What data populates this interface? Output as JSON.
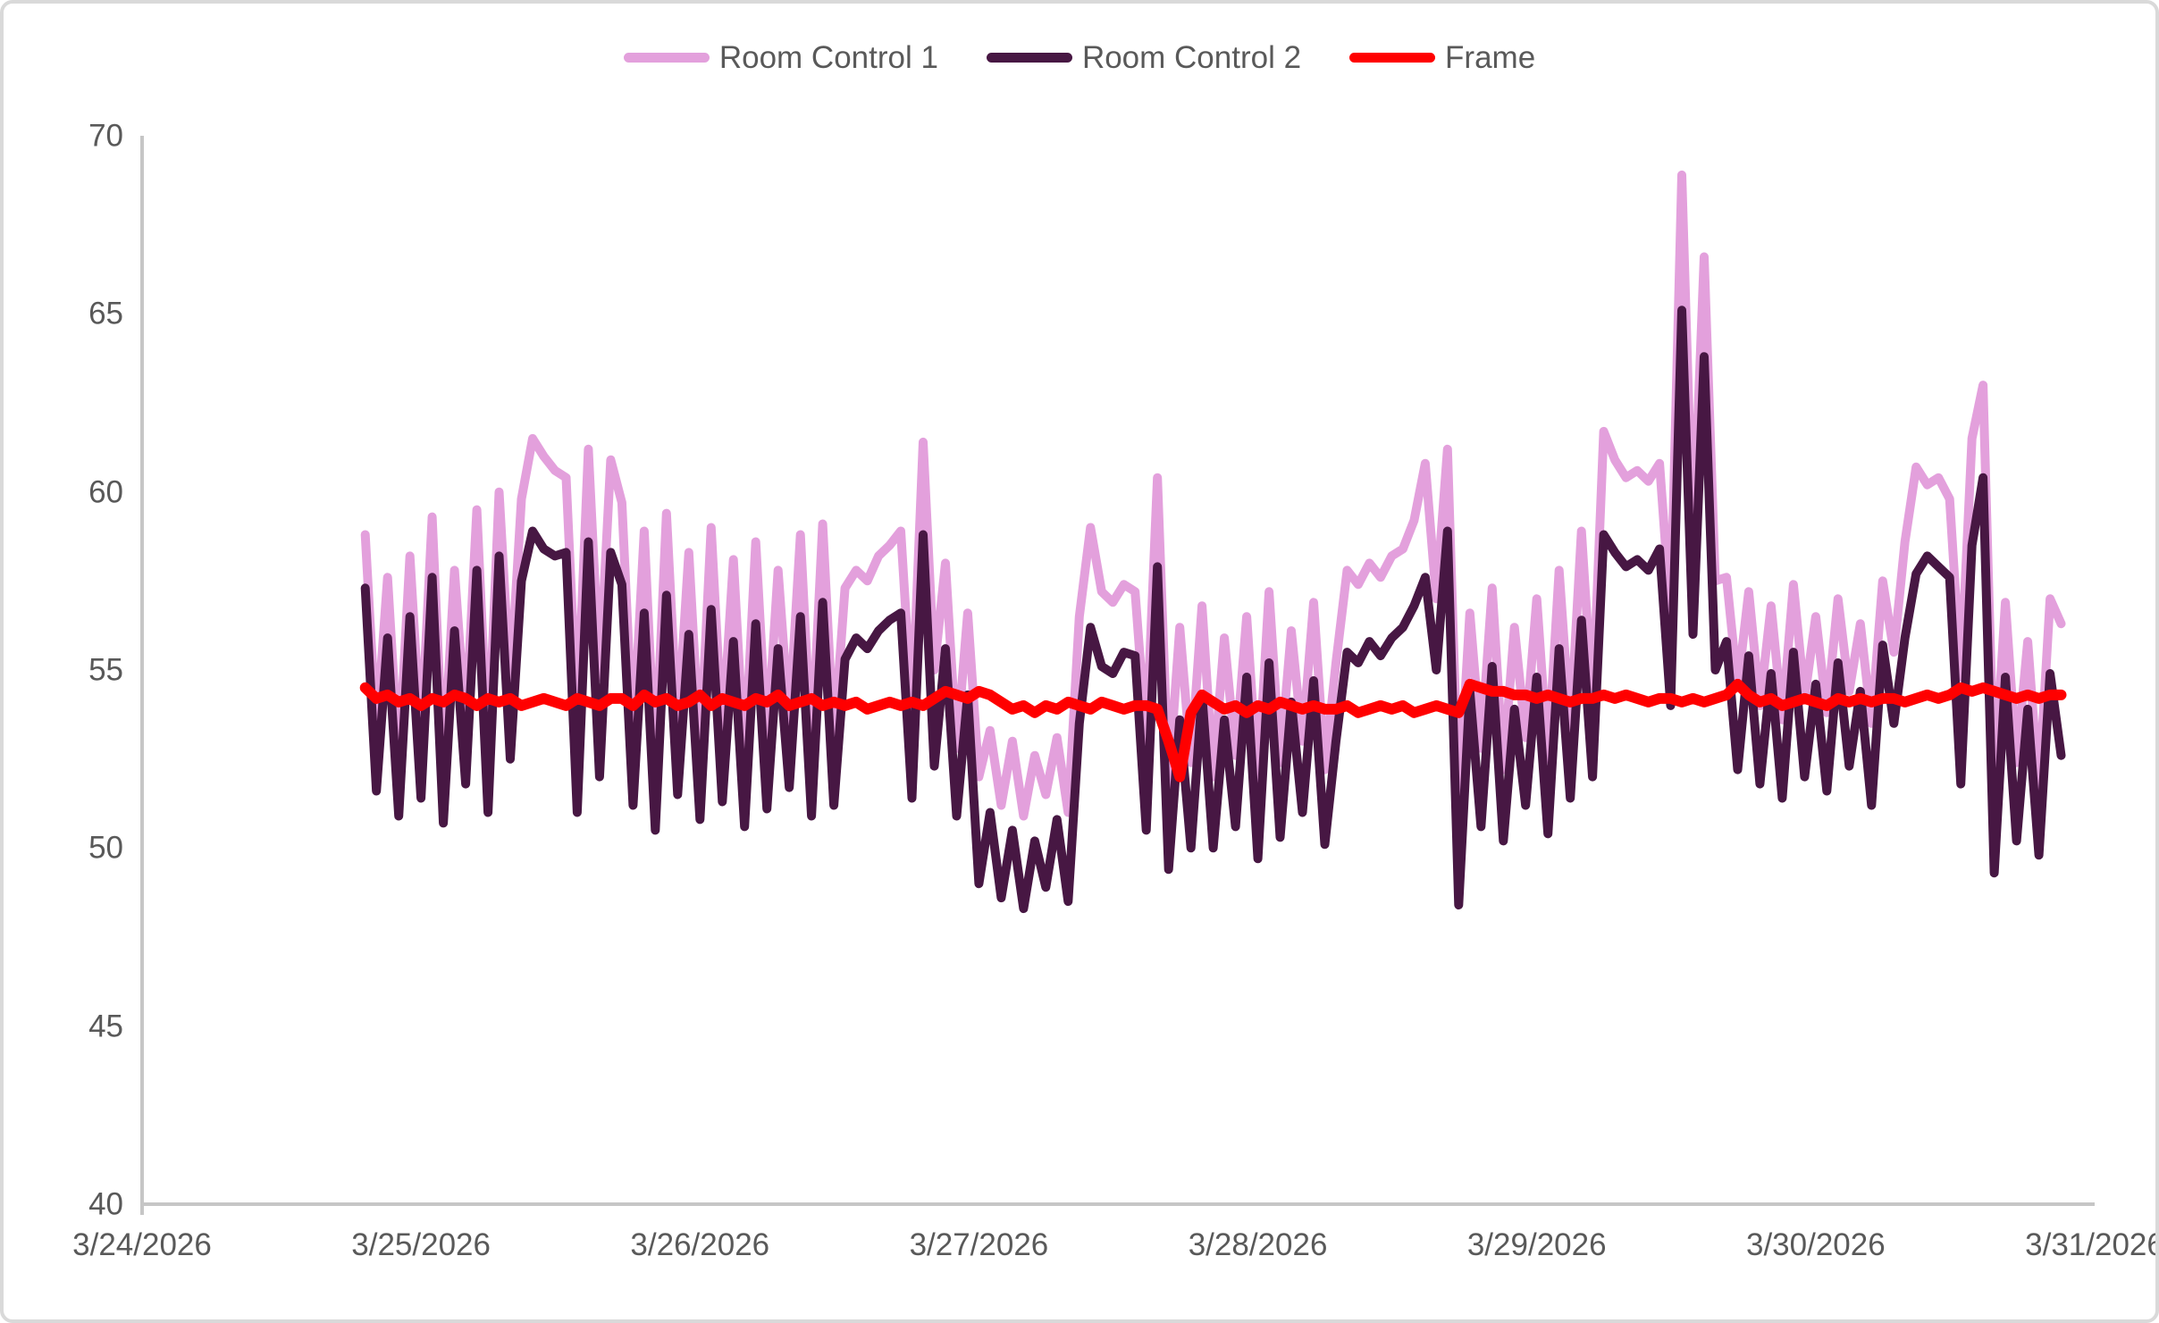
{
  "chart": {
    "background_color": "#FFFFFF",
    "frame_border_color": "#D9D9D9",
    "axis_line_color": "#C6C6C6",
    "label_color": "#595959"
  },
  "chart_data": {
    "type": "line",
    "title": "",
    "grid": "off",
    "legend_position": "top-center",
    "x_axis": {
      "label": "",
      "tick_labels": [
        "3/24/2026",
        "3/25/2026",
        "3/26/2026",
        "3/27/2026",
        "3/28/2026",
        "3/29/2026",
        "3/30/2026",
        "3/31/2026"
      ],
      "domain_days": [
        0,
        7
      ]
    },
    "y_axis": {
      "label": "",
      "min": 40,
      "max": 70,
      "ticks": [
        40,
        45,
        50,
        55,
        60,
        65,
        70
      ]
    },
    "sampling": {
      "t0_days_after_3_24": 0.8,
      "dt_days": 0.04,
      "note": "values sampled on uniform time grid; t(i) = t0 + i*dt days after 3/24/2026 00:00"
    },
    "series": [
      {
        "name": "Room Control 1",
        "color": "#E3A0DC",
        "stroke_width": 10,
        "values": [
          58.8,
          53.2,
          57.6,
          52.4,
          58.2,
          53.0,
          59.3,
          52.2,
          57.8,
          53.4,
          59.5,
          52.6,
          60.0,
          54.5,
          59.8,
          61.5,
          61.0,
          60.6,
          60.4,
          53.6,
          61.2,
          54.8,
          60.9,
          59.7,
          53.0,
          58.9,
          52.3,
          59.4,
          53.3,
          58.3,
          52.6,
          59.0,
          53.1,
          58.1,
          52.4,
          58.6,
          52.9,
          57.8,
          53.5,
          58.8,
          52.7,
          59.1,
          53.0,
          57.3,
          57.8,
          57.5,
          58.2,
          58.5,
          58.9,
          53.8,
          61.4,
          55.0,
          58.0,
          52.8,
          56.6,
          52.0,
          53.3,
          51.2,
          53.0,
          50.9,
          52.6,
          51.5,
          53.1,
          51.0,
          56.5,
          59.0,
          57.2,
          56.9,
          57.4,
          57.2,
          53.0,
          60.4,
          51.8,
          56.2,
          52.4,
          56.8,
          52.0,
          55.9,
          52.6,
          56.5,
          51.8,
          57.2,
          52.4,
          56.1,
          53.0,
          56.9,
          52.2,
          55.2,
          57.8,
          57.4,
          58.0,
          57.6,
          58.2,
          58.4,
          59.2,
          60.8,
          57.0,
          61.2,
          51.2,
          56.6,
          52.8,
          57.3,
          52.2,
          56.2,
          53.1,
          57.0,
          52.5,
          57.8,
          53.3,
          58.9,
          54.0,
          61.7,
          60.9,
          60.4,
          60.6,
          60.3,
          60.8,
          56.5,
          68.9,
          58.5,
          66.6,
          57.5,
          57.6,
          54.5,
          57.2,
          54.0,
          56.8,
          53.6,
          57.4,
          54.2,
          56.5,
          53.8,
          57.0,
          54.4,
          56.3,
          53.5,
          57.5,
          55.5,
          58.6,
          60.7,
          60.2,
          60.4,
          59.8,
          54.8,
          61.5,
          63.0,
          51.8,
          56.9,
          52.4,
          55.8,
          51.6,
          57.0,
          56.3
        ]
      },
      {
        "name": "Room Control 2",
        "color": "#471743",
        "stroke_width": 10,
        "values": [
          57.3,
          51.6,
          55.9,
          50.9,
          56.5,
          51.4,
          57.6,
          50.7,
          56.1,
          51.8,
          57.8,
          51.0,
          58.2,
          52.5,
          57.5,
          58.9,
          58.4,
          58.2,
          58.3,
          51.0,
          58.6,
          52.0,
          58.3,
          57.4,
          51.2,
          56.6,
          50.5,
          57.1,
          51.5,
          56.0,
          50.8,
          56.7,
          51.3,
          55.8,
          50.6,
          56.3,
          51.1,
          55.6,
          51.7,
          56.5,
          50.9,
          56.9,
          51.2,
          55.3,
          55.9,
          55.6,
          56.1,
          56.4,
          56.6,
          51.4,
          58.8,
          52.3,
          55.6,
          50.9,
          54.3,
          49.0,
          51.0,
          48.6,
          50.5,
          48.3,
          50.2,
          48.9,
          50.8,
          48.5,
          53.5,
          56.2,
          55.1,
          54.9,
          55.5,
          55.4,
          50.5,
          57.9,
          49.4,
          53.6,
          50.0,
          54.3,
          50.0,
          53.6,
          50.6,
          54.8,
          49.7,
          55.2,
          50.3,
          54.1,
          51.0,
          54.7,
          50.1,
          53.0,
          55.5,
          55.2,
          55.8,
          55.4,
          55.9,
          56.2,
          56.8,
          57.6,
          55.0,
          58.9,
          48.4,
          54.4,
          50.6,
          55.1,
          50.2,
          53.9,
          51.2,
          54.8,
          50.4,
          55.6,
          51.4,
          56.4,
          52.0,
          58.8,
          58.3,
          57.9,
          58.1,
          57.8,
          58.4,
          54.0,
          65.1,
          56.0,
          63.8,
          55.0,
          55.8,
          52.2,
          55.4,
          51.8,
          54.9,
          51.4,
          55.5,
          52.0,
          54.6,
          51.6,
          55.2,
          52.3,
          54.4,
          51.2,
          55.7,
          53.5,
          55.9,
          57.7,
          58.2,
          57.9,
          57.6,
          51.8,
          58.5,
          60.4,
          49.3,
          54.8,
          50.2,
          53.9,
          49.8,
          54.9,
          52.6
        ]
      },
      {
        "name": "Frame",
        "color": "#FF0000",
        "stroke_width": 12,
        "values": [
          54.5,
          54.2,
          54.3,
          54.1,
          54.2,
          54.0,
          54.2,
          54.1,
          54.3,
          54.2,
          54.0,
          54.2,
          54.1,
          54.2,
          54.0,
          54.1,
          54.2,
          54.1,
          54.0,
          54.2,
          54.1,
          54.0,
          54.2,
          54.2,
          54.0,
          54.3,
          54.1,
          54.2,
          54.0,
          54.1,
          54.3,
          54.0,
          54.2,
          54.1,
          54.0,
          54.2,
          54.1,
          54.3,
          54.0,
          54.1,
          54.2,
          54.0,
          54.1,
          54.0,
          54.1,
          53.9,
          54.0,
          54.1,
          54.0,
          54.1,
          54.0,
          54.2,
          54.4,
          54.3,
          54.2,
          54.4,
          54.3,
          54.1,
          53.9,
          54.0,
          53.8,
          54.0,
          53.9,
          54.1,
          54.0,
          53.9,
          54.1,
          54.0,
          53.9,
          54.0,
          54.0,
          53.9,
          53.0,
          52.0,
          53.8,
          54.3,
          54.1,
          53.9,
          54.0,
          53.8,
          54.0,
          53.9,
          54.1,
          54.0,
          53.9,
          54.0,
          53.9,
          53.9,
          54.0,
          53.8,
          53.9,
          54.0,
          53.9,
          54.0,
          53.8,
          53.9,
          54.0,
          53.9,
          53.8,
          54.6,
          54.5,
          54.4,
          54.4,
          54.3,
          54.3,
          54.2,
          54.3,
          54.2,
          54.1,
          54.2,
          54.2,
          54.3,
          54.2,
          54.3,
          54.2,
          54.1,
          54.2,
          54.2,
          54.1,
          54.2,
          54.1,
          54.2,
          54.3,
          54.6,
          54.3,
          54.1,
          54.2,
          54.0,
          54.1,
          54.2,
          54.1,
          54.0,
          54.2,
          54.1,
          54.2,
          54.1,
          54.2,
          54.2,
          54.1,
          54.2,
          54.3,
          54.2,
          54.3,
          54.5,
          54.4,
          54.5,
          54.4,
          54.3,
          54.2,
          54.3,
          54.2,
          54.3,
          54.3
        ]
      }
    ]
  }
}
